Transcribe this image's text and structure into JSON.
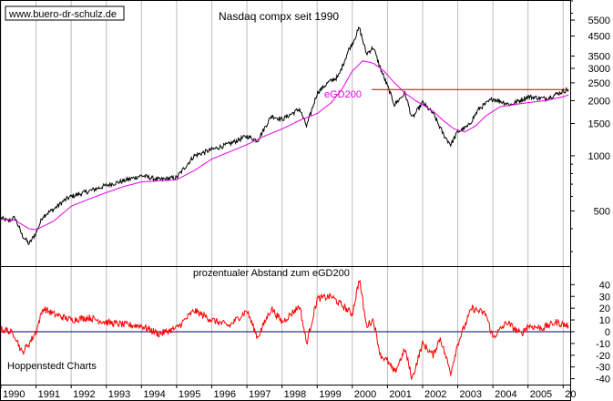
{
  "chart_data": [
    {
      "type": "line",
      "title": "Nasdaq compx seit 1990",
      "yscale": "log",
      "ylim": [
        250,
        7000
      ],
      "xlim": [
        1990.0,
        2006.2
      ],
      "yticks": [
        500,
        1000,
        1500,
        2000,
        2500,
        3000,
        3500,
        4500,
        5500
      ],
      "grid": true,
      "series": [
        {
          "color": "#000000",
          "x": [
            1990.0,
            1990.2,
            1990.4,
            1990.6,
            1990.8,
            1991.0,
            1991.2,
            1991.5,
            1991.8,
            1992.0,
            1992.5,
            1993.0,
            1993.5,
            1994.0,
            1994.5,
            1995.0,
            1995.5,
            1996.0,
            1996.5,
            1997.0,
            1997.3,
            1997.7,
            1998.0,
            1998.5,
            1998.7,
            1999.0,
            1999.3,
            1999.6,
            1999.9,
            2000.0,
            2000.2,
            2000.4,
            2000.6,
            2000.8,
            2001.0,
            2001.2,
            2001.5,
            2001.7,
            2002.0,
            2002.3,
            2002.6,
            2002.8,
            2003.0,
            2003.3,
            2003.6,
            2004.0,
            2004.5,
            2005.0,
            2005.5,
            2006.0,
            2006.15
          ],
          "y": [
            458,
            440,
            460,
            370,
            330,
            380,
            470,
            510,
            570,
            600,
            640,
            690,
            730,
            780,
            740,
            760,
            1000,
            1080,
            1160,
            1280,
            1210,
            1650,
            1580,
            1800,
            1450,
            2200,
            2500,
            2700,
            3800,
            4100,
            5000,
            3600,
            3900,
            3000,
            2400,
            1900,
            2200,
            1600,
            1950,
            1700,
            1300,
            1150,
            1350,
            1450,
            1800,
            2050,
            1900,
            2100,
            2050,
            2250,
            2300
          ]
        },
        {
          "name": "eGD200",
          "color": "#e600e6",
          "x": [
            1990.0,
            1990.4,
            1990.8,
            1991.0,
            1991.5,
            1992.0,
            1992.5,
            1993.0,
            1993.5,
            1994.0,
            1994.5,
            1995.0,
            1995.5,
            1996.0,
            1996.5,
            1997.0,
            1997.5,
            1998.0,
            1998.5,
            1999.0,
            1999.4,
            1999.7,
            2000.0,
            2000.3,
            2000.6,
            2000.9,
            2001.2,
            2001.5,
            2001.8,
            2002.0,
            2002.3,
            2002.6,
            2002.9,
            2003.2,
            2003.5,
            2003.8,
            2004.2,
            2004.6,
            2005.0,
            2005.5,
            2006.0,
            2006.15
          ],
          "y": [
            450,
            445,
            400,
            395,
            440,
            530,
            580,
            630,
            680,
            720,
            730,
            740,
            830,
            960,
            1050,
            1150,
            1280,
            1400,
            1560,
            1700,
            1950,
            2300,
            2900,
            3300,
            3200,
            2900,
            2500,
            2200,
            2000,
            1900,
            1750,
            1550,
            1400,
            1350,
            1450,
            1650,
            1850,
            1900,
            1950,
            2000,
            2100,
            2150
          ]
        },
        {
          "color": "#cc0000",
          "x": [
            2000.55,
            2006.15
          ],
          "y": [
            2300,
            2300
          ]
        }
      ]
    },
    {
      "type": "line",
      "title": "prozentualer Abstand zum eGD200",
      "ylim": [
        -45,
        55
      ],
      "xlim": [
        1990.0,
        2006.2
      ],
      "yticks": [
        40,
        30,
        20,
        10,
        0,
        -10,
        -20,
        -30,
        -40
      ],
      "grid": true,
      "series": [
        {
          "color": "#ff0000",
          "x": [
            1990.0,
            1990.2,
            1990.4,
            1990.6,
            1990.8,
            1991.0,
            1991.2,
            1991.5,
            1992.0,
            1992.5,
            1993.0,
            1993.5,
            1994.0,
            1994.5,
            1995.0,
            1995.5,
            1996.0,
            1996.5,
            1997.0,
            1997.3,
            1997.7,
            1998.0,
            1998.5,
            1998.7,
            1999.0,
            1999.4,
            1999.8,
            2000.0,
            2000.2,
            2000.4,
            2000.6,
            2000.8,
            2001.0,
            2001.2,
            2001.5,
            2001.7,
            2002.0,
            2002.3,
            2002.5,
            2002.8,
            2003.0,
            2003.4,
            2003.8,
            2004.0,
            2004.4,
            2004.8,
            2005.0,
            2005.4,
            2005.8,
            2006.15
          ],
          "y": [
            2,
            1,
            -3,
            -18,
            -10,
            0,
            20,
            15,
            10,
            12,
            8,
            6,
            5,
            -2,
            3,
            18,
            10,
            5,
            18,
            -5,
            20,
            8,
            22,
            -10,
            28,
            30,
            20,
            15,
            45,
            5,
            10,
            -20,
            -25,
            -35,
            -15,
            -40,
            -10,
            -20,
            -5,
            -35,
            -10,
            20,
            15,
            -5,
            8,
            -2,
            5,
            3,
            8,
            5
          ]
        }
      ]
    }
  ],
  "x_axis": {
    "tick_labels": [
      "1990",
      "1991",
      "1992",
      "1993",
      "1994",
      "1995",
      "1996",
      "1997",
      "1998",
      "1999",
      "2000",
      "2001",
      "2002",
      "2003",
      "2004",
      "2005",
      "20"
    ]
  },
  "annotations": {
    "source_url": "www.buero-dr-schulz.de",
    "egd_label": "eGD200",
    "credit": "Hoppenstedt Charts"
  }
}
